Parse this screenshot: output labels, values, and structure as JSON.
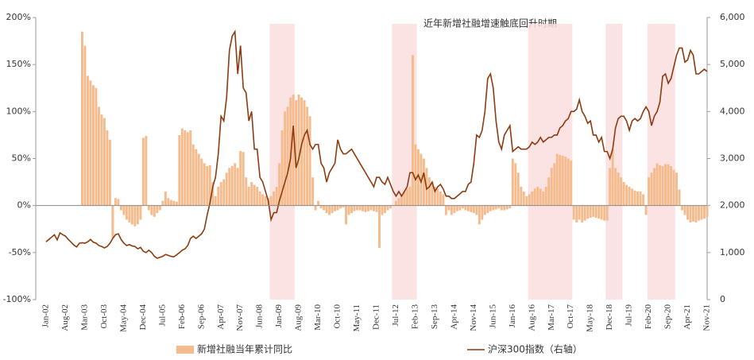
{
  "chart_data": {
    "type": "bar-line",
    "title": "近年新增社融增速触底回升时期",
    "categories": [
      "Jan-02",
      null,
      null,
      null,
      null,
      null,
      null,
      "Aug-02",
      null,
      null,
      null,
      null,
      null,
      null,
      "Mar-03",
      null,
      null,
      null,
      null,
      null,
      null,
      "Oct-03",
      null,
      null,
      null,
      null,
      null,
      null,
      "May-04",
      null,
      null,
      null,
      null,
      null,
      null,
      "Dec-04",
      null,
      null,
      null,
      null,
      null,
      null,
      "Jul-05",
      null,
      null,
      null,
      null,
      null,
      null,
      "Feb-06",
      null,
      null,
      null,
      null,
      null,
      null,
      "Sep-06",
      null,
      null,
      null,
      null,
      null,
      null,
      "Apr-07",
      null,
      null,
      null,
      null,
      null,
      null,
      "Nov-07",
      null,
      null,
      null,
      null,
      null,
      null,
      "Jun-08",
      null,
      null,
      null,
      null,
      null,
      null,
      "Jan-09",
      null,
      null,
      null,
      null,
      null,
      null,
      "Aug-09",
      null,
      null,
      null,
      null,
      null,
      null,
      "Mar-10",
      null,
      null,
      null,
      null,
      null,
      null,
      "Oct-10",
      null,
      null,
      null,
      null,
      null,
      null,
      "May-11",
      null,
      null,
      null,
      null,
      null,
      null,
      "Dec-11",
      null,
      null,
      null,
      null,
      null,
      null,
      "Jul-12",
      null,
      null,
      null,
      null,
      null,
      null,
      "Feb-13",
      null,
      null,
      null,
      null,
      null,
      null,
      "Sep-13",
      null,
      null,
      null,
      null,
      null,
      null,
      "Apr-14",
      null,
      null,
      null,
      null,
      null,
      null,
      "Nov-14",
      null,
      null,
      null,
      null,
      null,
      null,
      "Jun-15",
      null,
      null,
      null,
      null,
      null,
      null,
      "Jan-16",
      null,
      null,
      null,
      null,
      null,
      null,
      "Aug-16",
      null,
      null,
      null,
      null,
      null,
      null,
      "Mar-17",
      null,
      null,
      null,
      null,
      null,
      null,
      "Oct-17",
      null,
      null,
      null,
      null,
      null,
      null,
      "May-18",
      null,
      null,
      null,
      null,
      null,
      null,
      "Dec-18",
      null,
      null,
      null,
      null,
      null,
      null,
      "Jul-19",
      null,
      null,
      null,
      null,
      null,
      null,
      "Feb-20",
      null,
      null,
      null,
      null,
      null,
      null,
      "Sep-20",
      null,
      null,
      null,
      null,
      null,
      null,
      "Apr-21",
      null,
      null,
      null,
      null,
      null,
      null,
      "Nov-21"
    ],
    "series": [
      {
        "name": "新增社融当年累计同比",
        "type": "bar",
        "color": "#f6bb8c",
        "axis": "y",
        "values": [
          null,
          null,
          null,
          null,
          null,
          null,
          null,
          null,
          null,
          null,
          null,
          null,
          null,
          185,
          170,
          138,
          133,
          128,
          125,
          105,
          97,
          93,
          80,
          70,
          -35,
          8,
          7,
          -5,
          -10,
          -15,
          -18,
          -20,
          -22,
          -20,
          -15,
          72,
          74,
          -5,
          -10,
          -12,
          -8,
          -5,
          5,
          15,
          8,
          6,
          5,
          4,
          75,
          82,
          80,
          78,
          80,
          65,
          60,
          55,
          50,
          45,
          42,
          43,
          25,
          10,
          20,
          25,
          28,
          35,
          40,
          42,
          45,
          40,
          58,
          57,
          30,
          20,
          25,
          22,
          20,
          15,
          12,
          10,
          8,
          10,
          15,
          20,
          45,
          80,
          100,
          105,
          115,
          118,
          112,
          118,
          115,
          112,
          105,
          95,
          30,
          -5,
          5,
          -3,
          -5,
          -8,
          -10,
          -8,
          -6,
          -5,
          -3,
          -2,
          -20,
          -10,
          -8,
          -6,
          -5,
          -5,
          -6,
          -7,
          -6,
          -5,
          -6,
          -7,
          -45,
          -10,
          -8,
          -5,
          -3,
          0,
          5,
          8,
          12,
          15,
          18,
          20,
          160,
          65,
          60,
          55,
          50,
          40,
          30,
          25,
          20,
          18,
          15,
          12,
          -10,
          -5,
          -10,
          -8,
          -6,
          -5,
          -3,
          -5,
          -6,
          -7,
          -8,
          -10,
          -20,
          -15,
          -10,
          -8,
          -6,
          -5,
          -4,
          -3,
          -5,
          -5,
          -4,
          -3,
          50,
          45,
          35,
          20,
          15,
          10,
          12,
          15,
          18,
          20,
          18,
          15,
          20,
          30,
          40,
          45,
          55,
          54,
          53,
          52,
          50,
          48,
          -15,
          -18,
          -15,
          -18,
          -16,
          -14,
          -13,
          -12,
          -13,
          -14,
          -15,
          -16,
          -16,
          40,
          60,
          40,
          35,
          30,
          25,
          22,
          20,
          18,
          16,
          15,
          15,
          12,
          -10,
          30,
          35,
          40,
          45,
          43,
          42,
          44,
          44,
          42,
          38,
          35,
          17,
          -5,
          -10,
          -15,
          -18,
          -17,
          -18,
          -16,
          -15,
          -14,
          -12
        ]
      },
      {
        "name": "沪深300指数（右轴）",
        "type": "line",
        "color": "#8c3b10",
        "axis": "y2",
        "values": [
          1230,
          1280,
          1330,
          1380,
          1270,
          1420,
          1380,
          1350,
          1280,
          1220,
          1160,
          1120,
          1200,
          1210,
          1200,
          1230,
          1280,
          1220,
          1200,
          1150,
          1130,
          1100,
          1130,
          1200,
          1300,
          1380,
          1400,
          1280,
          1200,
          1150,
          1170,
          1140,
          1130,
          1080,
          1110,
          1030,
          1000,
          1050,
          1000,
          920,
          880,
          900,
          920,
          960,
          940,
          920,
          910,
          950,
          1000,
          1050,
          1080,
          1150,
          1300,
          1350,
          1300,
          1350,
          1400,
          1500,
          1800,
          2050,
          2400,
          2600,
          3100,
          3900,
          3800,
          4300,
          5300,
          5600,
          5700,
          4800,
          5400,
          4500,
          4400,
          3800,
          4000,
          3200,
          3200,
          2600,
          2500,
          2300,
          2100,
          1700,
          1850,
          1850,
          2100,
          2300,
          2500,
          2700,
          3000,
          3700,
          2800,
          3000,
          3300,
          3500,
          3600,
          3300,
          3200,
          3300,
          3300,
          2900,
          2800,
          2500,
          2700,
          2800,
          2900,
          3400,
          3200,
          3100,
          3100,
          3150,
          3200,
          3100,
          3000,
          2900,
          2800,
          2700,
          2600,
          2500,
          2400,
          2600,
          2600,
          2500,
          2450,
          2600,
          2450,
          2300,
          2200,
          2300,
          2200,
          2300,
          2400,
          2700,
          2700,
          2550,
          2650,
          2500,
          2700,
          2350,
          2400,
          2500,
          2300,
          2400,
          2450,
          2350,
          2200,
          2200,
          2150,
          2150,
          2200,
          2250,
          2300,
          2300,
          2450,
          2500,
          2900,
          3500,
          3450,
          3600,
          4000,
          4700,
          4800,
          4500,
          3800,
          3350,
          3200,
          3500,
          3600,
          3700,
          3150,
          3200,
          3250,
          3200,
          3200,
          3200,
          3250,
          3350,
          3300,
          3350,
          3450,
          3350,
          3400,
          3450,
          3450,
          3500,
          3500,
          3650,
          3700,
          3800,
          3850,
          4000,
          4000,
          4050,
          4250,
          4000,
          3900,
          3750,
          3800,
          3500,
          3500,
          3350,
          3450,
          3150,
          3150,
          3000,
          3200,
          3650,
          3850,
          3900,
          3900,
          3800,
          3600,
          3800,
          3850,
          3800,
          3850,
          4000,
          4100,
          4000,
          3700,
          3900,
          4000,
          4200,
          4750,
          4800,
          4600,
          4700,
          4950,
          5200,
          5350,
          5350,
          5050,
          5100,
          5300,
          5200,
          4800,
          4800,
          4850,
          4900,
          4850
        ]
      }
    ],
    "highlight_ranges": [
      [
        81,
        89
      ],
      [
        125,
        133
      ],
      [
        174,
        189
      ],
      [
        202,
        207
      ],
      [
        217,
        226
      ]
    ],
    "highlight_color": "#fcdede",
    "ylim": [
      -100,
      200
    ],
    "yticks": [
      {
        "value": -100,
        "label": "-100%"
      },
      {
        "value": -50,
        "label": "-50%"
      },
      {
        "value": 0,
        "label": "0%"
      },
      {
        "value": 50,
        "label": "50%"
      },
      {
        "value": 100,
        "label": "100%"
      },
      {
        "value": 150,
        "label": "150%"
      },
      {
        "value": 200,
        "label": "200%"
      }
    ],
    "y2lim": [
      0,
      6000
    ],
    "y2ticks": [
      0,
      {
        "value": 1000,
        "label": "1,000"
      },
      {
        "value": 2000,
        "label": "2,000"
      },
      {
        "value": 3000,
        "label": "3,000"
      },
      {
        "value": 4000,
        "label": "4,000"
      },
      {
        "value": 5000,
        "label": "5,000"
      },
      {
        "value": 6000,
        "label": "6,000"
      }
    ],
    "legend": "bottom"
  }
}
